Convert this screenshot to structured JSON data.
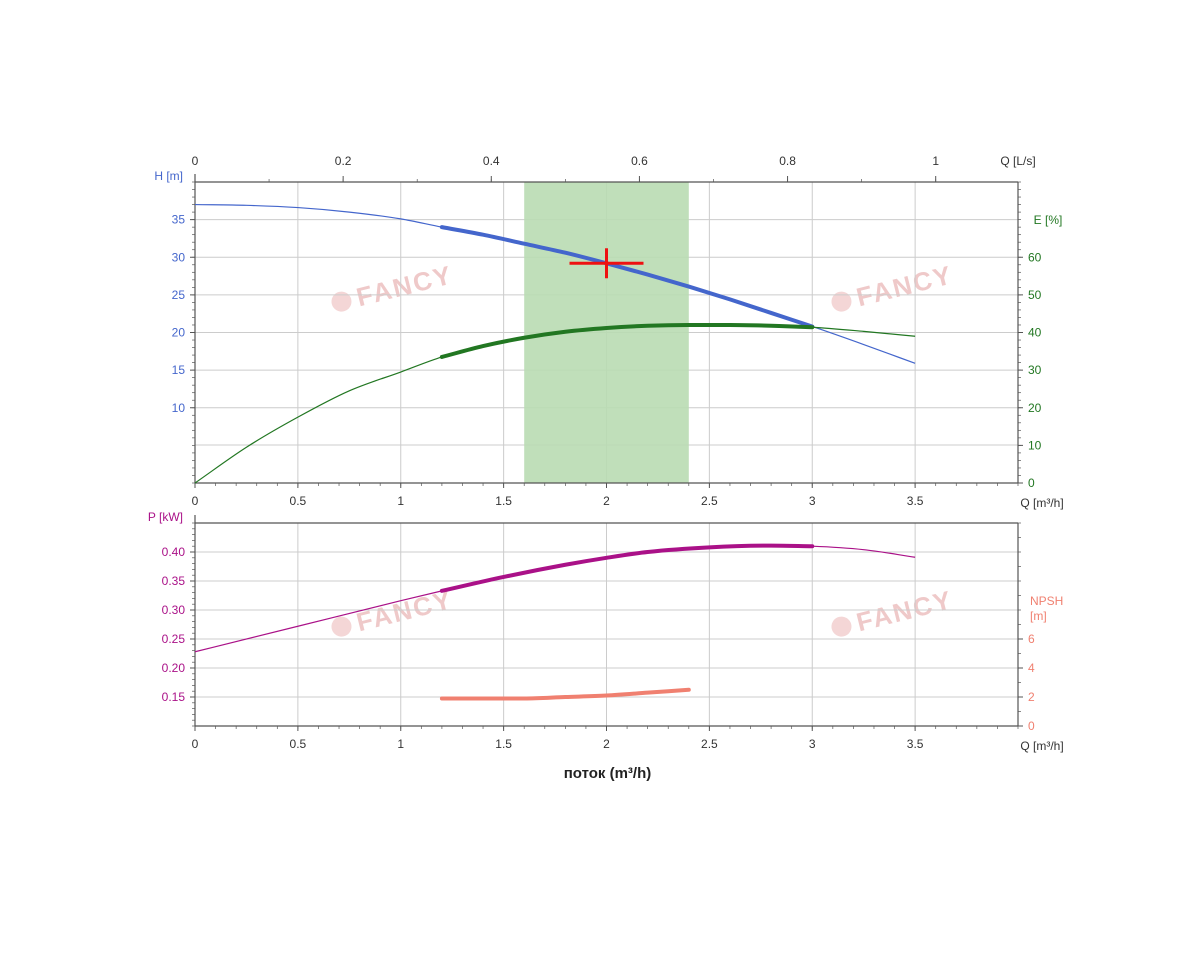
{
  "colors": {
    "head": "#4466cc",
    "efficiency": "#227722",
    "power": "#aa1188",
    "npsh": "#f08070",
    "duty_point": "#ee1111",
    "range_fill": "#b9dcb3",
    "grid": "#cccccc",
    "axis": "#555555"
  },
  "watermark": {
    "text": "FANCY"
  },
  "chart_data": [
    {
      "type": "line",
      "panel": "head-efficiency",
      "x_label": "Q [m³/h]",
      "x_ticks": [
        "0",
        "0.5",
        "1",
        "1.5",
        "2",
        "2.5",
        "3",
        "3.5"
      ],
      "xlim": [
        0,
        4
      ],
      "top_axis": {
        "label": "Q [L/s]",
        "ticks": [
          "0",
          "0.2",
          "0.4",
          "0.6",
          "0.8",
          "1"
        ],
        "tick_values": [
          0,
          0.2,
          0.4,
          0.6,
          0.8,
          1.0
        ]
      },
      "y_left": {
        "label": "H [m]",
        "ticks": [
          "10",
          "15",
          "20",
          "25",
          "30",
          "35"
        ],
        "tick_values": [
          10,
          15,
          20,
          25,
          30,
          35
        ],
        "ylim": [
          0,
          40
        ]
      },
      "y_right": {
        "label": "E [%]",
        "ticks": [
          "0",
          "10",
          "20",
          "30",
          "40",
          "50",
          "60"
        ],
        "tick_values": [
          0,
          10,
          20,
          30,
          40,
          50,
          60
        ],
        "ylim": [
          0,
          80
        ]
      },
      "recommended_range": [
        1.6,
        2.4
      ],
      "duty_point": {
        "x": 2.0,
        "y": 29.2
      },
      "series": [
        {
          "key": "head",
          "axis": "left",
          "x": [
            0,
            0.25,
            0.5,
            0.75,
            1.0,
            1.2,
            1.4,
            1.6,
            1.8,
            2.0,
            2.2,
            2.4,
            2.6,
            2.8,
            3.0,
            3.25,
            3.5
          ],
          "y": [
            37.0,
            36.9,
            36.6,
            36.0,
            35.1,
            34.0,
            33.0,
            31.8,
            30.6,
            29.2,
            27.7,
            26.1,
            24.4,
            22.6,
            20.8,
            18.4,
            15.9
          ],
          "bold_range": [
            1.2,
            3.0
          ]
        },
        {
          "key": "efficiency",
          "axis": "right",
          "x": [
            0,
            0.25,
            0.5,
            0.75,
            1.0,
            1.2,
            1.4,
            1.6,
            1.8,
            2.0,
            2.2,
            2.4,
            2.6,
            2.8,
            3.0,
            3.25,
            3.5
          ],
          "y": [
            0,
            9.5,
            17.5,
            24.5,
            29.5,
            33.5,
            36.4,
            38.6,
            40.2,
            41.2,
            41.8,
            42.0,
            42.0,
            41.8,
            41.4,
            40.3,
            39.0
          ],
          "bold_range": [
            1.2,
            3.0
          ]
        }
      ]
    },
    {
      "type": "line",
      "panel": "power-npsh",
      "x_label": "Q [m³/h]",
      "x_ticks": [
        "0",
        "0.5",
        "1",
        "1.5",
        "2",
        "2.5",
        "3",
        "3.5"
      ],
      "xlim": [
        0,
        4
      ],
      "bottom_title": "поток (m³/h)",
      "y_left": {
        "label": "P [kW]",
        "ticks": [
          "0.15",
          "0.20",
          "0.25",
          "0.30",
          "0.35",
          "0.40"
        ],
        "tick_values": [
          0.15,
          0.2,
          0.25,
          0.3,
          0.35,
          0.4
        ],
        "ylim": [
          0.1,
          0.45
        ]
      },
      "y_right": {
        "label_lines": [
          "NPSH",
          "[m]"
        ],
        "ticks": [
          "0",
          "2",
          "4",
          "6"
        ],
        "tick_values": [
          0,
          2,
          4,
          6
        ],
        "ylim": [
          0,
          14
        ]
      },
      "series": [
        {
          "key": "power",
          "axis": "left",
          "x": [
            0,
            0.5,
            1.0,
            1.2,
            1.5,
            1.8,
            2.0,
            2.2,
            2.5,
            2.8,
            3.0,
            3.25,
            3.5
          ],
          "y": [
            0.228,
            0.272,
            0.316,
            0.333,
            0.357,
            0.378,
            0.39,
            0.4,
            0.408,
            0.411,
            0.41,
            0.404,
            0.391
          ],
          "bold_range": [
            1.2,
            3.0
          ]
        },
        {
          "key": "npsh",
          "axis": "right",
          "x": [
            1.2,
            1.4,
            1.6,
            1.8,
            2.0,
            2.2,
            2.4
          ],
          "y": [
            1.9,
            1.9,
            1.9,
            2.0,
            2.1,
            2.3,
            2.5
          ],
          "bold_range": [
            1.2,
            2.4
          ]
        }
      ]
    }
  ]
}
